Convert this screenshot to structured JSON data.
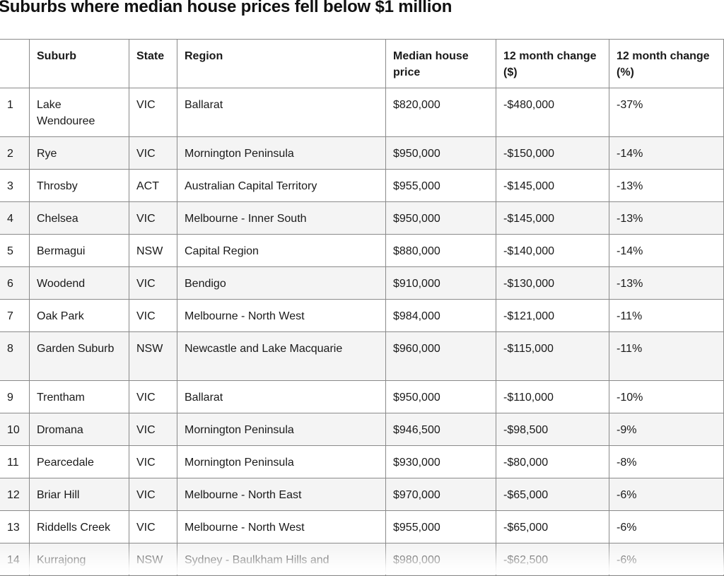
{
  "title": "Suburbs where median house prices fell below $1 million",
  "table": {
    "headers": {
      "num": "",
      "suburb": "Suburb",
      "state": "State",
      "region": "Region",
      "median": "Median house price",
      "change_dollar": "12 month change ($)",
      "change_pct": "12 month change (%)"
    },
    "rows": [
      {
        "num": "1",
        "suburb": "Lake Wendouree",
        "state": "VIC",
        "region": "Ballarat",
        "median": "$820,000",
        "change_dollar": "-$480,000",
        "change_pct": "-37%"
      },
      {
        "num": "2",
        "suburb": "Rye",
        "state": "VIC",
        "region": "Mornington Peninsula",
        "median": "$950,000",
        "change_dollar": "-$150,000",
        "change_pct": "-14%"
      },
      {
        "num": "3",
        "suburb": "Throsby",
        "state": "ACT",
        "region": "Australian Capital Territory",
        "median": "$955,000",
        "change_dollar": "-$145,000",
        "change_pct": "-13%"
      },
      {
        "num": "4",
        "suburb": "Chelsea",
        "state": "VIC",
        "region": "Melbourne - Inner South",
        "median": "$950,000",
        "change_dollar": "-$145,000",
        "change_pct": "-13%"
      },
      {
        "num": "5",
        "suburb": "Bermagui",
        "state": "NSW",
        "region": "Capital Region",
        "median": "$880,000",
        "change_dollar": "-$140,000",
        "change_pct": "-14%"
      },
      {
        "num": "6",
        "suburb": "Woodend",
        "state": "VIC",
        "region": "Bendigo",
        "median": "$910,000",
        "change_dollar": "-$130,000",
        "change_pct": "-13%"
      },
      {
        "num": "7",
        "suburb": "Oak Park",
        "state": "VIC",
        "region": "Melbourne - North West",
        "median": "$984,000",
        "change_dollar": "-$121,000",
        "change_pct": "-11%"
      },
      {
        "num": "8",
        "suburb": "Garden Suburb",
        "state": "NSW",
        "region": "Newcastle and Lake Macquarie",
        "median": "$960,000",
        "change_dollar": "-$115,000",
        "change_pct": "-11%"
      },
      {
        "num": "9",
        "suburb": "Trentham",
        "state": "VIC",
        "region": "Ballarat",
        "median": "$950,000",
        "change_dollar": "-$110,000",
        "change_pct": "-10%"
      },
      {
        "num": "10",
        "suburb": "Dromana",
        "state": "VIC",
        "region": "Mornington Peninsula",
        "median": "$946,500",
        "change_dollar": "-$98,500",
        "change_pct": "-9%"
      },
      {
        "num": "11",
        "suburb": "Pearcedale",
        "state": "VIC",
        "region": "Mornington Peninsula",
        "median": "$930,000",
        "change_dollar": "-$80,000",
        "change_pct": "-8%"
      },
      {
        "num": "12",
        "suburb": "Briar Hill",
        "state": "VIC",
        "region": "Melbourne - North East",
        "median": "$970,000",
        "change_dollar": "-$65,000",
        "change_pct": "-6%"
      },
      {
        "num": "13",
        "suburb": "Riddells Creek",
        "state": "VIC",
        "region": "Melbourne - North West",
        "median": "$955,000",
        "change_dollar": "-$65,000",
        "change_pct": "-6%"
      },
      {
        "num": "14",
        "suburb": "Kurrajong",
        "state": "NSW",
        "region": "Sydney - Baulkham Hills and",
        "median": "$980,000",
        "change_dollar": "-$62,500",
        "change_pct": "-6%"
      }
    ]
  }
}
